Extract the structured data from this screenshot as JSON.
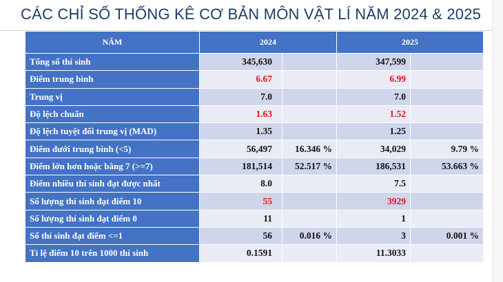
{
  "title": "CÁC CHỈ SỐ THỐNG KÊ CƠ BẢN MÔN VẬT LÍ NĂM 2024 & 2025",
  "table": {
    "header": {
      "label": "NĂM",
      "year_a": "2024",
      "year_b": "2025"
    },
    "rows": [
      {
        "label": "Tổng số thí sinh",
        "v2024": "345,630",
        "p2024": "",
        "v2025": "347,599",
        "p2025": "",
        "highlight": false
      },
      {
        "label": "Điểm trung bình",
        "v2024": "6.67",
        "p2024": "",
        "v2025": "6.99",
        "p2025": "",
        "highlight": true
      },
      {
        "label": "Trung vị",
        "v2024": "7.0",
        "p2024": "",
        "v2025": "7.0",
        "p2025": "",
        "highlight": false
      },
      {
        "label": "Độ lệch chuẩn",
        "v2024": "1.63",
        "p2024": "",
        "v2025": "1.52",
        "p2025": "",
        "highlight": true
      },
      {
        "label": "Độ lệch tuyệt đối trung vị (MAD)",
        "v2024": "1.35",
        "p2024": "",
        "v2025": "1.25",
        "p2025": "",
        "highlight": false
      },
      {
        "label": "Điểm dưới trung bình (<5)",
        "v2024": "56,497",
        "p2024": "16.346 %",
        "v2025": "34,029",
        "p2025": "9.79 %",
        "highlight": false
      },
      {
        "label": "Điểm lớn hơn hoặc bằng 7 (>=7)",
        "v2024": "181,514",
        "p2024": "52.517 %",
        "v2025": "186,531",
        "p2025": "53.663 %",
        "highlight": false
      },
      {
        "label": "Điểm nhiều thí sinh đạt được nhất",
        "v2024": "8.0",
        "p2024": "",
        "v2025": "7.5",
        "p2025": "",
        "highlight": false
      },
      {
        "label": "Số lượng thí sinh đạt điểm 10",
        "v2024": "55",
        "p2024": "",
        "v2025": "3929",
        "p2025": "",
        "highlight": true
      },
      {
        "label": "Số lượng thí sinh đạt điểm 0",
        "v2024": "11",
        "p2024": "",
        "v2025": "1",
        "p2025": "",
        "highlight": false
      },
      {
        "label": "Số thí sinh đạt điểm <=1",
        "v2024": "56",
        "p2024": "0.016 %",
        "v2025": "3",
        "p2025": "0.001 %",
        "highlight": false
      },
      {
        "label": "Tỉ lệ điểm 10 trên 1000 thí sinh",
        "v2024": "0.1591",
        "p2024": "",
        "v2025": "11.3033",
        "p2025": "",
        "highlight": false
      }
    ]
  },
  "colors": {
    "header_blue": "#4472c4",
    "row_dark": "#cfd5ea",
    "row_light": "#e9ebf5",
    "highlight_red": "#e3141a",
    "title_navy": "#1f3b66"
  }
}
